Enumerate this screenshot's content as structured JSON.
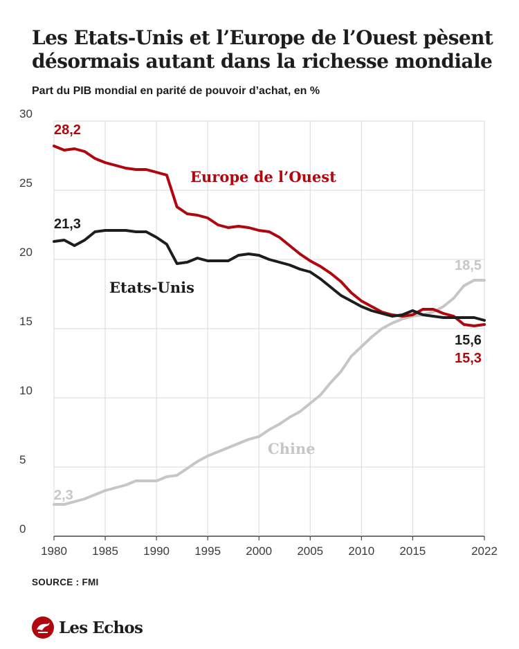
{
  "title": "Les Etats-Unis et l’Europe de l’Ouest pèsent désormais autant dans la richesse mondiale",
  "subtitle": "Part du PIB mondial en parité de pouvoir d’achat, en %",
  "source": "SOURCE : FMI",
  "logo_text": "Les Echos",
  "chart_data": {
    "type": "line",
    "ylim": [
      0,
      30
    ],
    "yticks": [
      0,
      5,
      10,
      15,
      20,
      25,
      30
    ],
    "ytick_labels": [
      "0",
      "5",
      "10",
      "15",
      "20",
      "25",
      "30"
    ],
    "xlim": [
      1980,
      2022
    ],
    "xticks": [
      1980,
      1985,
      1990,
      1995,
      2000,
      2005,
      2010,
      2015,
      2022
    ],
    "xtick_labels": [
      "1980",
      "1985",
      "1990",
      "1995",
      "2000",
      "2005",
      "2010",
      "2015",
      "2022"
    ],
    "grid": true,
    "x": [
      1980,
      1981,
      1982,
      1983,
      1984,
      1985,
      1986,
      1987,
      1988,
      1989,
      1990,
      1991,
      1992,
      1993,
      1994,
      1995,
      1996,
      1997,
      1998,
      1999,
      2000,
      2001,
      2002,
      2003,
      2004,
      2005,
      2006,
      2007,
      2008,
      2009,
      2010,
      2011,
      2012,
      2013,
      2014,
      2015,
      2016,
      2017,
      2018,
      2019,
      2020,
      2021,
      2022
    ],
    "series": [
      {
        "name": "Chine",
        "color": "#c6c6c6",
        "values": [
          2.3,
          2.3,
          2.5,
          2.7,
          3.0,
          3.3,
          3.5,
          3.7,
          4.0,
          4.0,
          4.0,
          4.3,
          4.4,
          4.9,
          5.4,
          5.8,
          6.1,
          6.4,
          6.7,
          7.0,
          7.2,
          7.7,
          8.1,
          8.6,
          9.0,
          9.6,
          10.2,
          11.1,
          11.9,
          13.0,
          13.7,
          14.4,
          15.0,
          15.4,
          15.7,
          15.9,
          16.0,
          16.2,
          16.6,
          17.2,
          18.1,
          18.5,
          18.5
        ]
      },
      {
        "name": "Europe de l’Ouest",
        "color": "#b0060e",
        "values": [
          28.2,
          27.9,
          28.0,
          27.8,
          27.3,
          27.0,
          26.8,
          26.6,
          26.5,
          26.5,
          26.3,
          26.1,
          23.8,
          23.3,
          23.2,
          23.0,
          22.5,
          22.3,
          22.4,
          22.3,
          22.1,
          22.0,
          21.6,
          21.0,
          20.4,
          19.9,
          19.5,
          19.0,
          18.4,
          17.6,
          17.0,
          16.6,
          16.2,
          16.0,
          15.9,
          16.0,
          16.4,
          16.4,
          16.1,
          15.9,
          15.3,
          15.2,
          15.3
        ]
      },
      {
        "name": "Etats-Unis",
        "color": "#1d1d1b",
        "values": [
          21.3,
          21.4,
          21.0,
          21.4,
          22.0,
          22.1,
          22.1,
          22.1,
          22.0,
          22.0,
          21.6,
          21.1,
          19.7,
          19.8,
          20.1,
          19.9,
          19.9,
          19.9,
          20.3,
          20.4,
          20.3,
          20.0,
          19.8,
          19.6,
          19.3,
          19.1,
          18.6,
          18.0,
          17.4,
          17.0,
          16.6,
          16.3,
          16.1,
          15.9,
          16.0,
          16.3,
          16.0,
          15.9,
          15.8,
          15.8,
          15.8,
          15.8,
          15.6
        ]
      }
    ],
    "labels": {
      "europe": "Europe de l’Ouest",
      "us": "Etats-Unis",
      "chine": "Chine",
      "europe_start": "28,2",
      "us_start": "21,3",
      "chine_start": "2,3",
      "chine_end": "18,5",
      "us_end": "15,6",
      "europe_end": "15,3"
    }
  }
}
